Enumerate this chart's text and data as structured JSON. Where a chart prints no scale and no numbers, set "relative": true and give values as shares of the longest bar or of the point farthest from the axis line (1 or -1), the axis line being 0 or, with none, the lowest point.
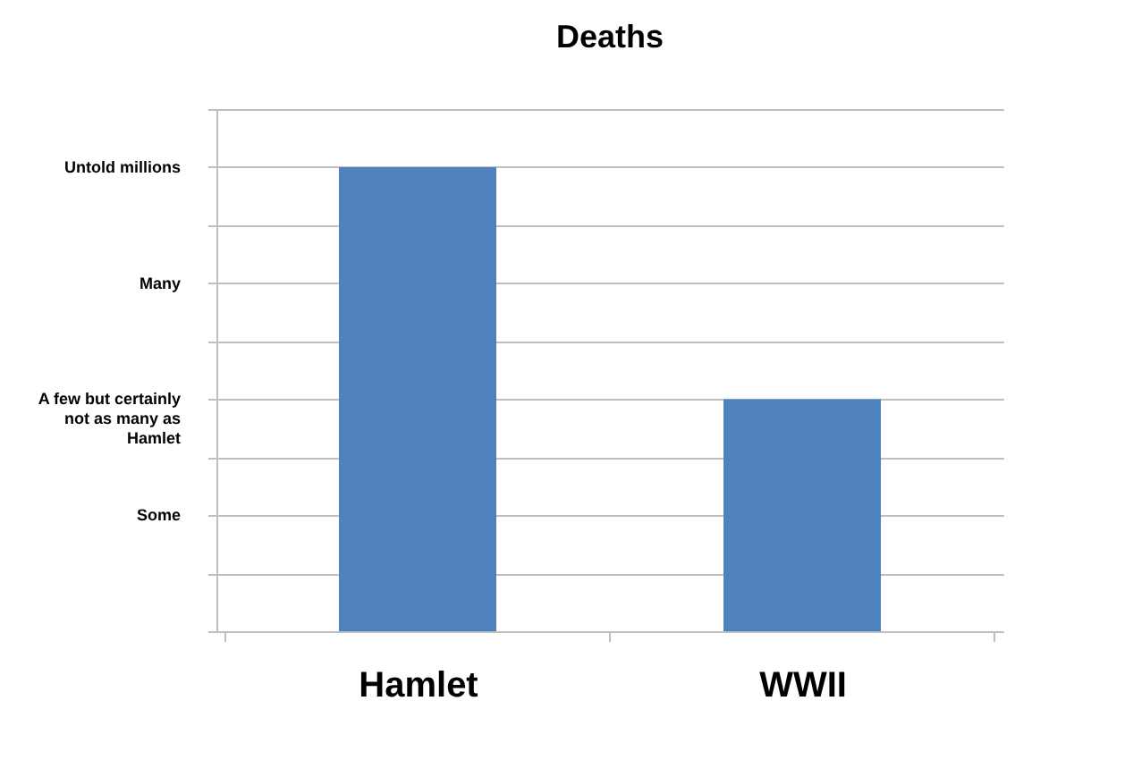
{
  "chart_data": {
    "type": "bar",
    "title": "Deaths",
    "relative": true,
    "categories": [
      "Hamlet",
      "WWII"
    ],
    "values": [
      1,
      0.5
    ],
    "color": "#4f81bd",
    "annotations": [
      "Untold millions",
      "Many",
      "A few but certainly not as many as Hamlet",
      "Some"
    ],
    "grid": "y"
  }
}
